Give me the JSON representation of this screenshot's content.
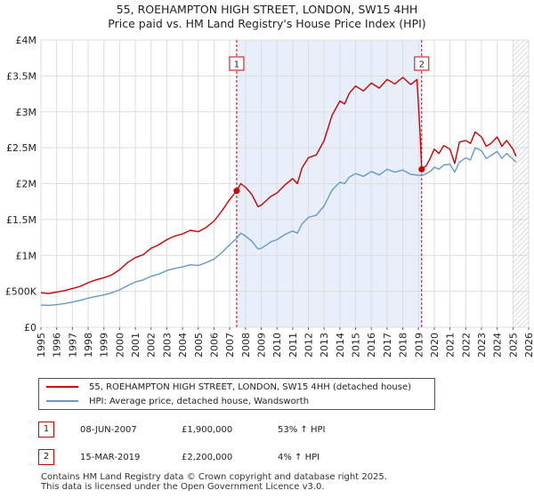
{
  "header": {
    "title_line1": "55, ROEHAMPTON HIGH STREET, LONDON, SW15 4HH",
    "title_line2": "Price paid vs. HM Land Registry's House Price Index (HPI)"
  },
  "colors": {
    "property": "#cc0000",
    "hpi": "#6699cc",
    "shade": "#e8eefa",
    "grid": "#dddddd"
  },
  "legend": {
    "property_label": "55, ROEHAMPTON HIGH STREET, LONDON, SW15 4HH (detached house)",
    "hpi_label": "HPI: Average price, detached house, Wandsworth"
  },
  "transactions": [
    {
      "num": "1",
      "date": "08-JUN-2007",
      "price": "£1,900,000",
      "hpi": "53% ↑ HPI"
    },
    {
      "num": "2",
      "date": "15-MAR-2019",
      "price": "£2,200,000",
      "hpi": "4% ↑ HPI"
    }
  ],
  "footer": {
    "line1": "Contains HM Land Registry data © Crown copyright and database right 2025.",
    "line2": "This data is licensed under the Open Government Licence v3.0."
  },
  "chart_data": {
    "type": "line",
    "xlim": [
      1995,
      2026
    ],
    "ylim": [
      0,
      4000000
    ],
    "yticks": [
      0,
      500000,
      1000000,
      1500000,
      2000000,
      2500000,
      3000000,
      3500000,
      4000000
    ],
    "ytick_labels": [
      "£0",
      "£500K",
      "£1M",
      "£1.5M",
      "£2M",
      "£2.5M",
      "£3M",
      "£3.5M",
      "£4M"
    ],
    "xticks": [
      1995,
      1996,
      1997,
      1998,
      1999,
      2000,
      2001,
      2002,
      2003,
      2004,
      2005,
      2006,
      2007,
      2008,
      2009,
      2010,
      2011,
      2012,
      2013,
      2014,
      2015,
      2016,
      2017,
      2018,
      2019,
      2020,
      2021,
      2022,
      2023,
      2024,
      2025,
      2026
    ],
    "shaded_region": [
      2007.44,
      2019.2
    ],
    "hatched_from": 2025.0,
    "series": [
      {
        "name": "55, ROEHAMPTON HIGH STREET, LONDON, SW15 4HH (detached house)",
        "x": [
          1995.0,
          1995.5,
          1996.0,
          1996.5,
          1997.0,
          1997.5,
          1998.0,
          1998.5,
          1999.0,
          1999.5,
          2000.0,
          2000.5,
          2001.0,
          2001.5,
          2002.0,
          2002.5,
          2003.0,
          2003.5,
          2004.0,
          2004.5,
          2005.0,
          2005.5,
          2006.0,
          2006.5,
          2007.0,
          2007.44,
          2007.7,
          2008.0,
          2008.4,
          2008.8,
          2009.0,
          2009.3,
          2009.6,
          2010.0,
          2010.5,
          2011.0,
          2011.3,
          2011.6,
          2012.0,
          2012.5,
          2013.0,
          2013.5,
          2014.0,
          2014.3,
          2014.6,
          2015.0,
          2015.5,
          2016.0,
          2016.5,
          2017.0,
          2017.5,
          2018.0,
          2018.5,
          2018.9,
          2019.1,
          2019.2,
          2019.5,
          2019.8,
          2020.0,
          2020.3,
          2020.6,
          2021.0,
          2021.3,
          2021.6,
          2022.0,
          2022.3,
          2022.6,
          2023.0,
          2023.3,
          2023.6,
          2024.0,
          2024.3,
          2024.6,
          2025.0,
          2025.2
        ],
        "y": [
          480000,
          470000,
          490000,
          510000,
          540000,
          570000,
          620000,
          660000,
          690000,
          730000,
          800000,
          900000,
          970000,
          1010000,
          1100000,
          1150000,
          1220000,
          1270000,
          1300000,
          1350000,
          1330000,
          1390000,
          1480000,
          1620000,
          1780000,
          1900000,
          2000000,
          1950000,
          1850000,
          1680000,
          1700000,
          1760000,
          1820000,
          1870000,
          1980000,
          2070000,
          2000000,
          2220000,
          2360000,
          2400000,
          2600000,
          2950000,
          3150000,
          3110000,
          3260000,
          3360000,
          3290000,
          3400000,
          3330000,
          3450000,
          3390000,
          3480000,
          3380000,
          3450000,
          2700000,
          2200000,
          2250000,
          2380000,
          2480000,
          2420000,
          2530000,
          2480000,
          2280000,
          2580000,
          2600000,
          2560000,
          2720000,
          2650000,
          2520000,
          2560000,
          2650000,
          2520000,
          2600000,
          2480000,
          2380000
        ]
      },
      {
        "name": "HPI: Average price, detached house, Wandsworth",
        "x": [
          1995.0,
          1995.5,
          1996.0,
          1996.5,
          1997.0,
          1997.5,
          1998.0,
          1998.5,
          1999.0,
          1999.5,
          2000.0,
          2000.5,
          2001.0,
          2001.5,
          2002.0,
          2002.5,
          2003.0,
          2003.5,
          2004.0,
          2004.5,
          2005.0,
          2005.5,
          2006.0,
          2006.5,
          2007.0,
          2007.44,
          2007.7,
          2008.0,
          2008.4,
          2008.8,
          2009.0,
          2009.3,
          2009.6,
          2010.0,
          2010.5,
          2011.0,
          2011.3,
          2011.6,
          2012.0,
          2012.5,
          2013.0,
          2013.5,
          2014.0,
          2014.3,
          2014.6,
          2015.0,
          2015.5,
          2016.0,
          2016.5,
          2017.0,
          2017.5,
          2018.0,
          2018.5,
          2018.9,
          2019.2,
          2019.5,
          2019.8,
          2020.0,
          2020.3,
          2020.6,
          2021.0,
          2021.3,
          2021.6,
          2022.0,
          2022.3,
          2022.6,
          2023.0,
          2023.3,
          2023.6,
          2024.0,
          2024.3,
          2024.6,
          2025.0,
          2025.2
        ],
        "y": [
          310000,
          305000,
          315000,
          330000,
          350000,
          375000,
          405000,
          430000,
          450000,
          480000,
          520000,
          580000,
          630000,
          660000,
          710000,
          740000,
          790000,
          820000,
          840000,
          870000,
          860000,
          900000,
          950000,
          1040000,
          1150000,
          1240000,
          1310000,
          1270000,
          1200000,
          1090000,
          1100000,
          1140000,
          1190000,
          1220000,
          1290000,
          1340000,
          1310000,
          1440000,
          1530000,
          1560000,
          1690000,
          1910000,
          2020000,
          2000000,
          2090000,
          2140000,
          2100000,
          2170000,
          2120000,
          2200000,
          2160000,
          2190000,
          2130000,
          2120000,
          2110000,
          2140000,
          2180000,
          2230000,
          2200000,
          2260000,
          2270000,
          2160000,
          2300000,
          2360000,
          2330000,
          2500000,
          2460000,
          2350000,
          2390000,
          2450000,
          2350000,
          2420000,
          2340000,
          2300000
        ]
      }
    ],
    "markers": [
      {
        "label": "1",
        "x": 2007.44,
        "y": 1900000
      },
      {
        "label": "2",
        "x": 2019.2,
        "y": 2200000
      }
    ]
  }
}
